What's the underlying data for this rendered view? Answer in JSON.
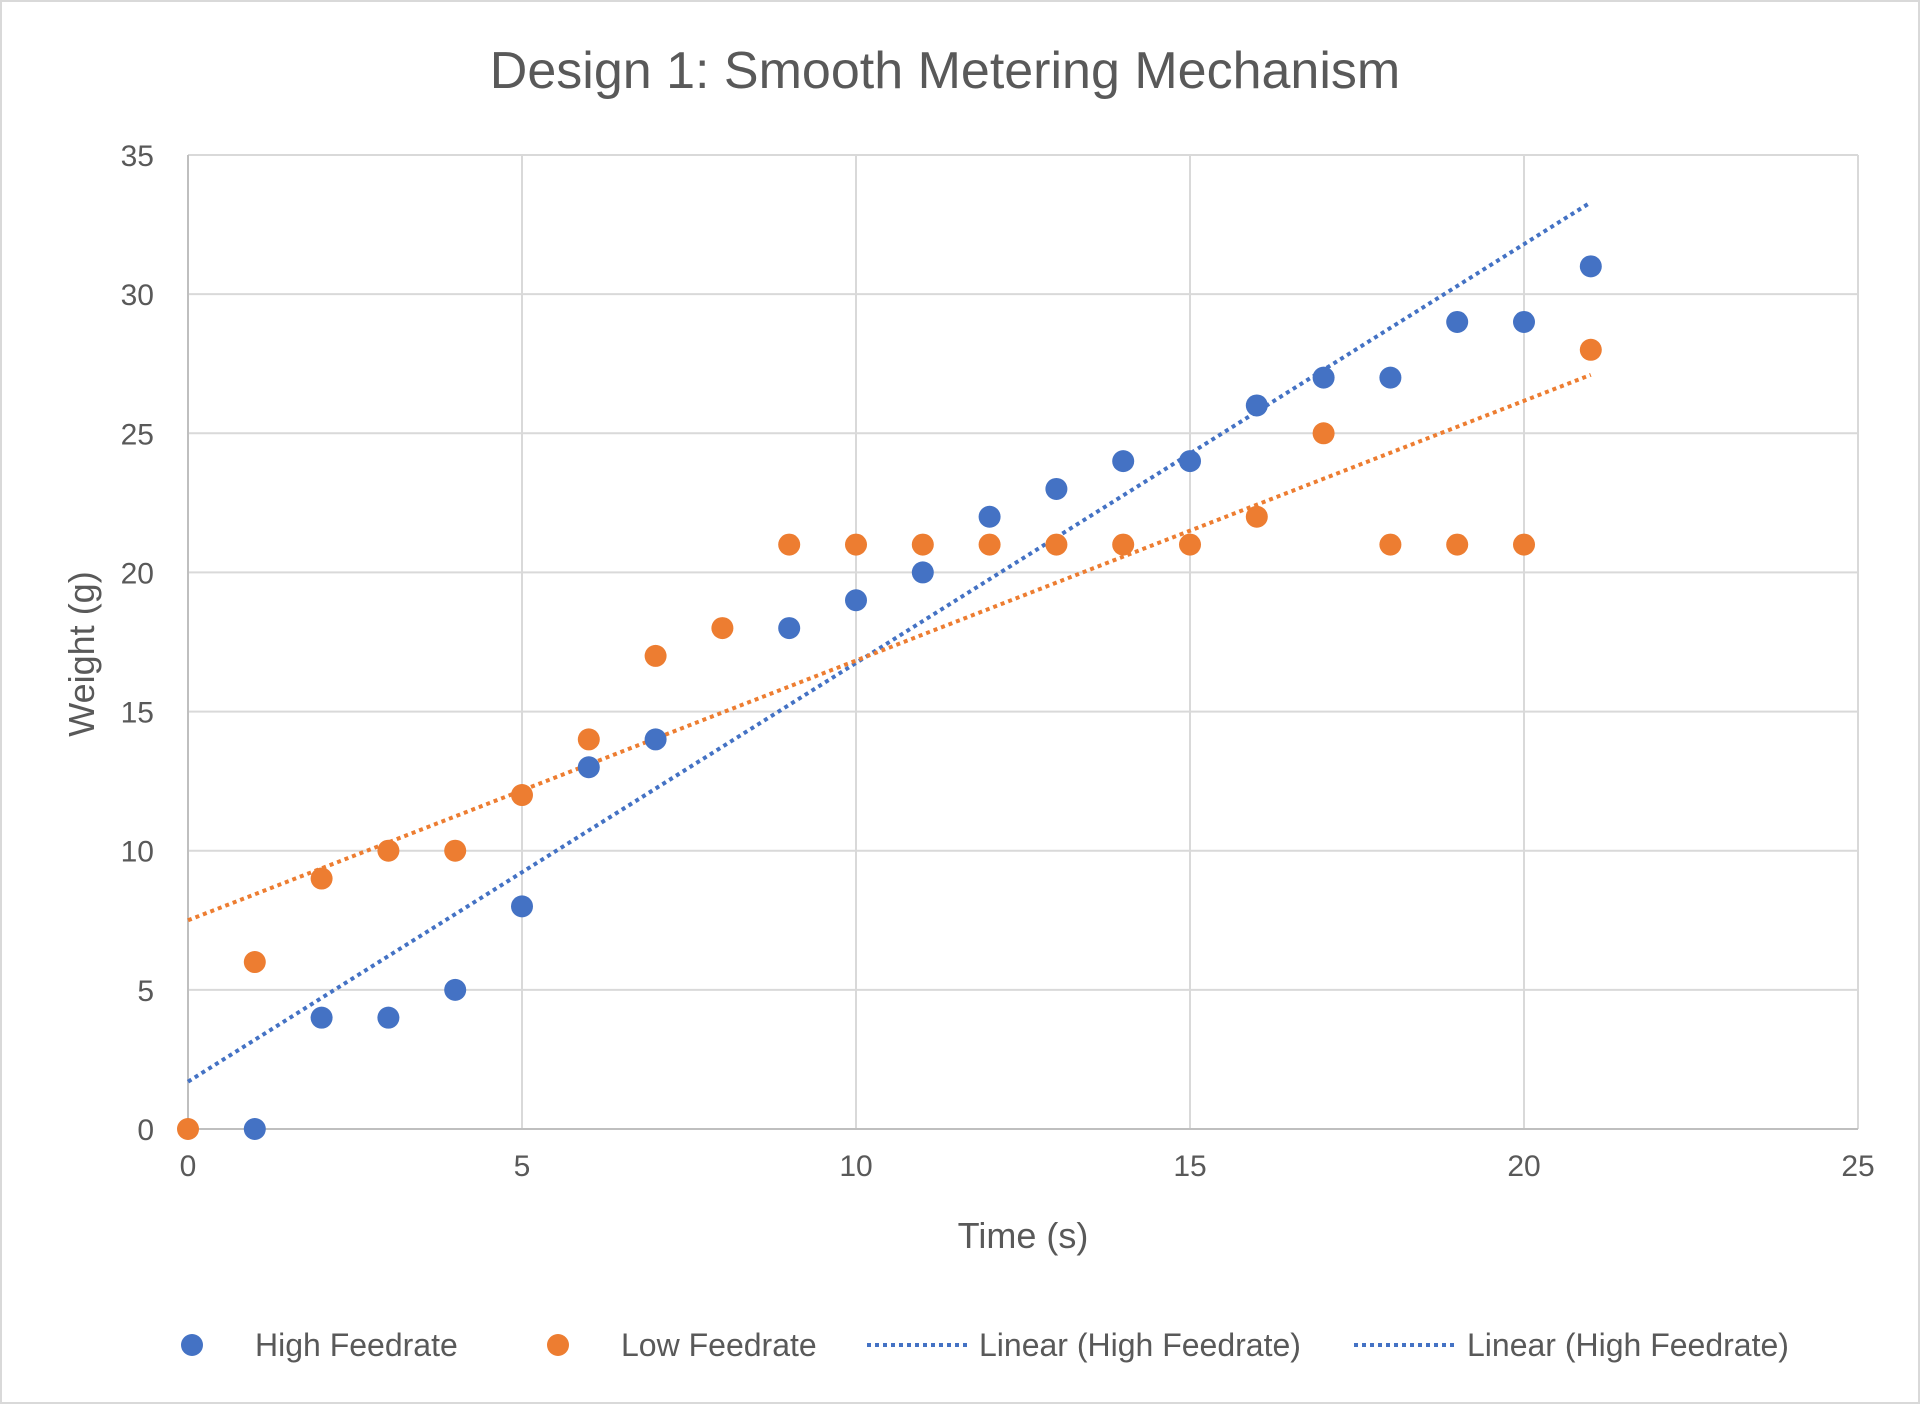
{
  "chart_data": {
    "type": "scatter",
    "title": "Design 1: Smooth Metering Mechanism",
    "xlabel": "Time (s)",
    "ylabel": "Weight (g)",
    "xlim": [
      0,
      25
    ],
    "ylim": [
      0,
      35
    ],
    "x_ticks": [
      0,
      5,
      10,
      15,
      20,
      25
    ],
    "y_ticks": [
      0,
      5,
      10,
      15,
      20,
      25,
      30,
      35
    ],
    "grid": true,
    "legend_position": "bottom",
    "series": [
      {
        "name": "High Feedrate",
        "color": "#4472C4",
        "x": [
          1,
          2,
          3,
          4,
          5,
          6,
          7,
          9,
          10,
          11,
          12,
          13,
          14,
          15,
          16,
          17,
          18,
          19,
          20,
          21
        ],
        "y": [
          0,
          4,
          4,
          5,
          8,
          13,
          14,
          18,
          19,
          20,
          22,
          23,
          24,
          24,
          26,
          27,
          27,
          29,
          29,
          31
        ]
      },
      {
        "name": "Low Feedrate",
        "color": "#ED7D31",
        "x": [
          0,
          1,
          2,
          3,
          4,
          5,
          6,
          7,
          8,
          9,
          10,
          11,
          12,
          13,
          14,
          15,
          16,
          17,
          18,
          19,
          20,
          21
        ],
        "y": [
          0,
          6,
          9,
          10,
          10,
          12,
          14,
          17,
          18,
          21,
          21,
          21,
          21,
          21,
          21,
          21,
          22,
          25,
          21,
          21,
          21,
          28
        ]
      }
    ],
    "trendlines": [
      {
        "name": "Linear (High Feedrate)",
        "color": "#4472C4",
        "style": "dotted",
        "x": [
          0,
          21
        ],
        "y": [
          1.7,
          33.3
        ]
      },
      {
        "name": "Linear (High Feedrate)",
        "color": "#ED7D31",
        "legend_color": "#4472C4",
        "style": "dotted",
        "x": [
          0,
          21
        ],
        "y": [
          7.5,
          27.1
        ]
      }
    ]
  }
}
